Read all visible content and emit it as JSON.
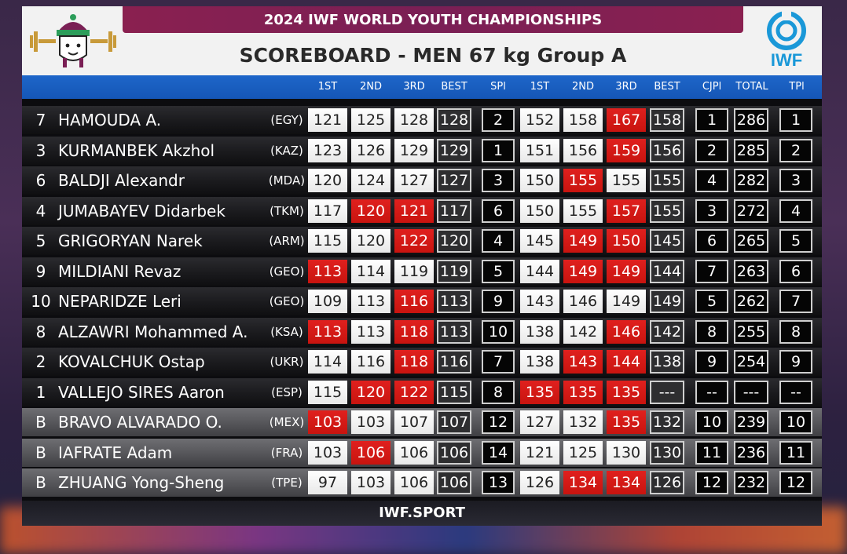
{
  "header": {
    "event": "2024 IWF WORLD YOUTH CHAMPIONSHIPS",
    "title": "SCOREBOARD - MEN 67 kg Group A",
    "logo_text": "IWF"
  },
  "columns": [
    "1ST",
    "2ND",
    "3RD",
    "BEST",
    "SPl",
    "1ST",
    "2ND",
    "3RD",
    "BEST",
    "CJPl",
    "TOTAL",
    "TPl"
  ],
  "colors": {
    "fail": "#d81b18",
    "header_blue": "#1556b6",
    "banner": "#8a2050",
    "iwf_blue": "#1a98d8"
  },
  "rows": [
    {
      "lot": "7",
      "name": "HAMOUDA A.",
      "nation": "(EGY)",
      "group": "A",
      "snatch": [
        {
          "v": "121",
          "good": true
        },
        {
          "v": "125",
          "good": true
        },
        {
          "v": "128",
          "good": true
        }
      ],
      "snatch_best": "128",
      "spl": "2",
      "cj": [
        {
          "v": "152",
          "good": true
        },
        {
          "v": "158",
          "good": true
        },
        {
          "v": "167",
          "good": false
        }
      ],
      "cj_best": "158",
      "cjpl": "1",
      "total": "286",
      "tpl": "1"
    },
    {
      "lot": "3",
      "name": "KURMANBEK Akzhol",
      "nation": "(KAZ)",
      "group": "A",
      "snatch": [
        {
          "v": "123",
          "good": true
        },
        {
          "v": "126",
          "good": true
        },
        {
          "v": "129",
          "good": true
        }
      ],
      "snatch_best": "129",
      "spl": "1",
      "cj": [
        {
          "v": "151",
          "good": true
        },
        {
          "v": "156",
          "good": true
        },
        {
          "v": "159",
          "good": false
        }
      ],
      "cj_best": "156",
      "cjpl": "2",
      "total": "285",
      "tpl": "2"
    },
    {
      "lot": "6",
      "name": "BALDJI Alexandr",
      "nation": "(MDA)",
      "group": "A",
      "snatch": [
        {
          "v": "120",
          "good": true
        },
        {
          "v": "124",
          "good": true
        },
        {
          "v": "127",
          "good": true
        }
      ],
      "snatch_best": "127",
      "spl": "3",
      "cj": [
        {
          "v": "150",
          "good": true
        },
        {
          "v": "155",
          "good": false
        },
        {
          "v": "155",
          "good": true
        }
      ],
      "cj_best": "155",
      "cjpl": "4",
      "total": "282",
      "tpl": "3"
    },
    {
      "lot": "4",
      "name": "JUMABAYEV Didarbek",
      "nation": "(TKM)",
      "group": "A",
      "snatch": [
        {
          "v": "117",
          "good": true
        },
        {
          "v": "120",
          "good": false
        },
        {
          "v": "121",
          "good": false
        }
      ],
      "snatch_best": "117",
      "spl": "6",
      "cj": [
        {
          "v": "150",
          "good": true
        },
        {
          "v": "155",
          "good": true
        },
        {
          "v": "157",
          "good": false
        }
      ],
      "cj_best": "155",
      "cjpl": "3",
      "total": "272",
      "tpl": "4"
    },
    {
      "lot": "5",
      "name": "GRIGORYAN Narek",
      "nation": "(ARM)",
      "group": "A",
      "snatch": [
        {
          "v": "115",
          "good": true
        },
        {
          "v": "120",
          "good": true
        },
        {
          "v": "122",
          "good": false
        }
      ],
      "snatch_best": "120",
      "spl": "4",
      "cj": [
        {
          "v": "145",
          "good": true
        },
        {
          "v": "149",
          "good": false
        },
        {
          "v": "150",
          "good": false
        }
      ],
      "cj_best": "145",
      "cjpl": "6",
      "total": "265",
      "tpl": "5"
    },
    {
      "lot": "9",
      "name": "MILDIANI Revaz",
      "nation": "(GEO)",
      "group": "A",
      "snatch": [
        {
          "v": "113",
          "good": false
        },
        {
          "v": "114",
          "good": true
        },
        {
          "v": "119",
          "good": true
        }
      ],
      "snatch_best": "119",
      "spl": "5",
      "cj": [
        {
          "v": "144",
          "good": true
        },
        {
          "v": "149",
          "good": false
        },
        {
          "v": "149",
          "good": false
        }
      ],
      "cj_best": "144",
      "cjpl": "7",
      "total": "263",
      "tpl": "6"
    },
    {
      "lot": "10",
      "name": "NEPARIDZE Leri",
      "nation": "(GEO)",
      "group": "A",
      "snatch": [
        {
          "v": "109",
          "good": true
        },
        {
          "v": "113",
          "good": true
        },
        {
          "v": "116",
          "good": false
        }
      ],
      "snatch_best": "113",
      "spl": "9",
      "cj": [
        {
          "v": "143",
          "good": true
        },
        {
          "v": "146",
          "good": true
        },
        {
          "v": "149",
          "good": true
        }
      ],
      "cj_best": "149",
      "cjpl": "5",
      "total": "262",
      "tpl": "7"
    },
    {
      "lot": "8",
      "name": "ALZAWRI Mohammed A.",
      "nation": "(KSA)",
      "group": "A",
      "snatch": [
        {
          "v": "113",
          "good": false
        },
        {
          "v": "113",
          "good": true
        },
        {
          "v": "118",
          "good": false
        }
      ],
      "snatch_best": "113",
      "spl": "10",
      "cj": [
        {
          "v": "138",
          "good": true
        },
        {
          "v": "142",
          "good": true
        },
        {
          "v": "146",
          "good": false
        }
      ],
      "cj_best": "142",
      "cjpl": "8",
      "total": "255",
      "tpl": "8"
    },
    {
      "lot": "2",
      "name": "KOVALCHUK Ostap",
      "nation": "(UKR)",
      "group": "A",
      "snatch": [
        {
          "v": "114",
          "good": true
        },
        {
          "v": "116",
          "good": true
        },
        {
          "v": "118",
          "good": false
        }
      ],
      "snatch_best": "116",
      "spl": "7",
      "cj": [
        {
          "v": "138",
          "good": true
        },
        {
          "v": "143",
          "good": false
        },
        {
          "v": "144",
          "good": false
        }
      ],
      "cj_best": "138",
      "cjpl": "9",
      "total": "254",
      "tpl": "9"
    },
    {
      "lot": "1",
      "name": "VALLEJO SIRES Aaron",
      "nation": "(ESP)",
      "group": "A",
      "snatch": [
        {
          "v": "115",
          "good": true
        },
        {
          "v": "120",
          "good": false
        },
        {
          "v": "122",
          "good": false
        }
      ],
      "snatch_best": "115",
      "spl": "8",
      "cj": [
        {
          "v": "135",
          "good": false
        },
        {
          "v": "135",
          "good": false
        },
        {
          "v": "135",
          "good": false
        }
      ],
      "cj_best": "---",
      "cjpl": "--",
      "total": "---",
      "tpl": "--"
    },
    {
      "lot": "B",
      "name": "BRAVO ALVARADO O.",
      "nation": "(MEX)",
      "group": "B",
      "snatch": [
        {
          "v": "103",
          "good": false
        },
        {
          "v": "103",
          "good": true
        },
        {
          "v": "107",
          "good": true
        }
      ],
      "snatch_best": "107",
      "spl": "12",
      "cj": [
        {
          "v": "127",
          "good": true
        },
        {
          "v": "132",
          "good": true
        },
        {
          "v": "135",
          "good": false
        }
      ],
      "cj_best": "132",
      "cjpl": "10",
      "total": "239",
      "tpl": "10"
    },
    {
      "lot": "B",
      "name": "IAFRATE Adam",
      "nation": "(FRA)",
      "group": "B",
      "snatch": [
        {
          "v": "103",
          "good": true
        },
        {
          "v": "106",
          "good": false
        },
        {
          "v": "106",
          "good": true
        }
      ],
      "snatch_best": "106",
      "spl": "14",
      "cj": [
        {
          "v": "121",
          "good": true
        },
        {
          "v": "125",
          "good": true
        },
        {
          "v": "130",
          "good": true
        }
      ],
      "cj_best": "130",
      "cjpl": "11",
      "total": "236",
      "tpl": "11"
    },
    {
      "lot": "B",
      "name": "ZHUANG Yong-Sheng",
      "nation": "(TPE)",
      "group": "B",
      "snatch": [
        {
          "v": "97",
          "good": true
        },
        {
          "v": "103",
          "good": true
        },
        {
          "v": "106",
          "good": true
        }
      ],
      "snatch_best": "106",
      "spl": "13",
      "cj": [
        {
          "v": "126",
          "good": true
        },
        {
          "v": "134",
          "good": false
        },
        {
          "v": "134",
          "good": false
        }
      ],
      "cj_best": "126",
      "cjpl": "12",
      "total": "232",
      "tpl": "12"
    }
  ],
  "footer": "IWF.SPORT"
}
